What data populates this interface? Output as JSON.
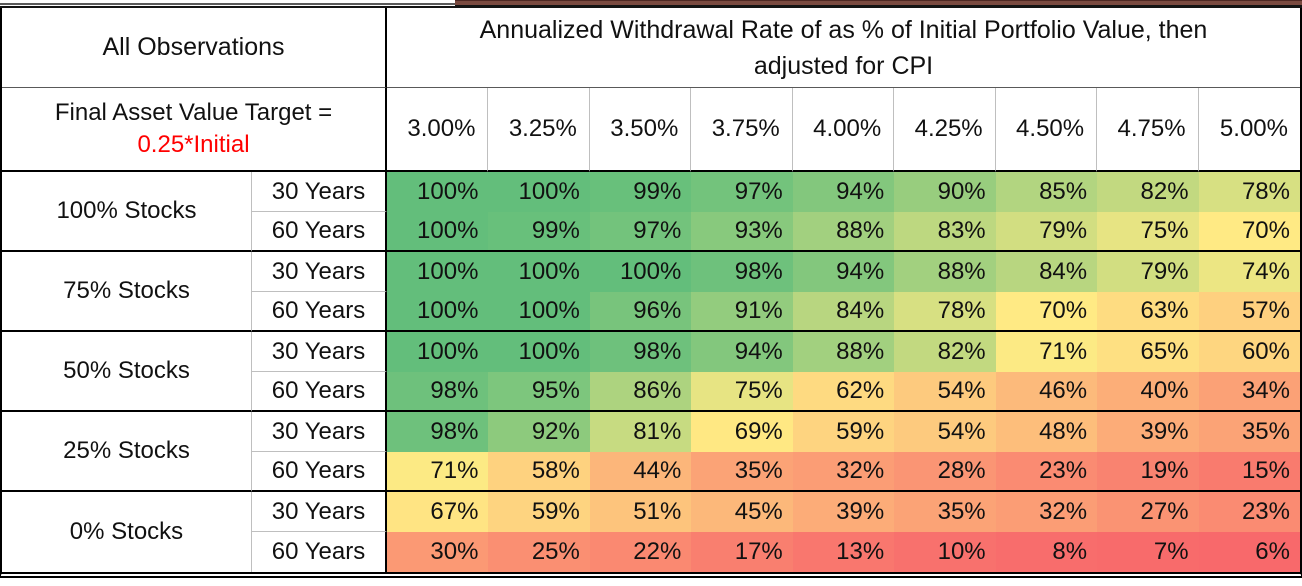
{
  "colors": {
    "maroon_strip": "#7A4A40",
    "border_black": "#000000",
    "thin_gray": "#BFBFBF",
    "text": "#111111",
    "accent_red": "#FF0000"
  },
  "chart_data": {
    "type": "heatmap",
    "corner_label": "All Observations",
    "title_lines": [
      "Annualized Withdrawal Rate of as % of Initial Portfolio Value, then",
      "adjusted for CPI"
    ],
    "note_lines": [
      "Final Asset Value Target =",
      "0.25*Initial"
    ],
    "columns": [
      "3.00%",
      "3.25%",
      "3.50%",
      "3.75%",
      "4.00%",
      "4.25%",
      "4.50%",
      "4.75%",
      "5.00%"
    ],
    "value_suffix": "%",
    "row_groups": [
      {
        "label": "100% Stocks",
        "rows": [
          {
            "label": "30 Years",
            "values": [
              100,
              100,
              99,
              97,
              94,
              90,
              85,
              82,
              78
            ]
          },
          {
            "label": "60 Years",
            "values": [
              100,
              99,
              97,
              93,
              88,
              83,
              79,
              75,
              70
            ]
          }
        ]
      },
      {
        "label": "75% Stocks",
        "rows": [
          {
            "label": "30 Years",
            "values": [
              100,
              100,
              100,
              98,
              94,
              88,
              84,
              79,
              74
            ]
          },
          {
            "label": "60 Years",
            "values": [
              100,
              100,
              96,
              91,
              84,
              78,
              70,
              63,
              57
            ]
          }
        ]
      },
      {
        "label": "50% Stocks",
        "rows": [
          {
            "label": "30 Years",
            "values": [
              100,
              100,
              98,
              94,
              88,
              82,
              71,
              65,
              60
            ]
          },
          {
            "label": "60 Years",
            "values": [
              98,
              95,
              86,
              75,
              62,
              54,
              46,
              40,
              34
            ]
          }
        ]
      },
      {
        "label": "25% Stocks",
        "rows": [
          {
            "label": "30 Years",
            "values": [
              98,
              92,
              81,
              69,
              59,
              54,
              48,
              39,
              35
            ]
          },
          {
            "label": "60 Years",
            "values": [
              71,
              58,
              44,
              35,
              32,
              28,
              23,
              19,
              15
            ]
          }
        ]
      },
      {
        "label": "0% Stocks",
        "rows": [
          {
            "label": "30 Years",
            "values": [
              67,
              59,
              51,
              45,
              39,
              35,
              32,
              27,
              23
            ]
          },
          {
            "label": "60 Years",
            "values": [
              30,
              25,
              22,
              17,
              13,
              10,
              8,
              7,
              6
            ]
          }
        ]
      }
    ],
    "color_scale": {
      "min_value": 6,
      "mid_value": 70.5,
      "max_value": 100,
      "min_color": "#F8696B",
      "mid_color": "#FFEB84",
      "max_color": "#63BE7B"
    }
  }
}
